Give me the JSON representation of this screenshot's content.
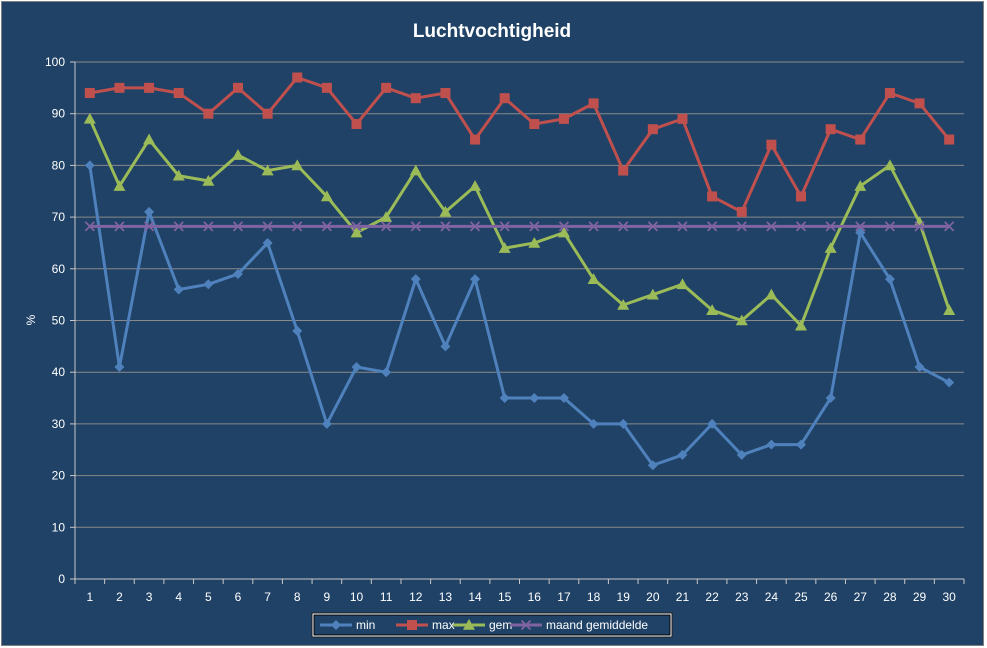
{
  "chart_data": {
    "type": "line",
    "title": "Luchtvochtigheid",
    "ylabel": "%",
    "xlabel": "",
    "ylim": [
      0,
      100
    ],
    "yticks": [
      0,
      10,
      20,
      30,
      40,
      50,
      60,
      70,
      80,
      90,
      100
    ],
    "categories": [
      "1",
      "2",
      "3",
      "4",
      "5",
      "6",
      "7",
      "8",
      "9",
      "10",
      "11",
      "12",
      "13",
      "14",
      "15",
      "16",
      "17",
      "18",
      "19",
      "20",
      "21",
      "22",
      "23",
      "24",
      "25",
      "26",
      "27",
      "28",
      "29",
      "30"
    ],
    "grid": "horizontal",
    "legend_position": "bottom",
    "series": [
      {
        "name": "min",
        "color": "#4f81bd",
        "marker": "diamond",
        "values": [
          80,
          41,
          71,
          56,
          57,
          59,
          65,
          48,
          30,
          41,
          40,
          58,
          45,
          58,
          35,
          35,
          35,
          30,
          30,
          22,
          24,
          30,
          24,
          26,
          26,
          35,
          67,
          58,
          41,
          38
        ]
      },
      {
        "name": "max",
        "color": "#c0504d",
        "marker": "square",
        "values": [
          94,
          95,
          95,
          94,
          90,
          95,
          90,
          97,
          95,
          88,
          95,
          93,
          94,
          85,
          93,
          88,
          89,
          92,
          79,
          87,
          89,
          74,
          71,
          84,
          74,
          87,
          85,
          94,
          92,
          85
        ]
      },
      {
        "name": "gem",
        "color": "#9bbb59",
        "marker": "triangle",
        "values": [
          89,
          76,
          85,
          78,
          77,
          82,
          79,
          80,
          74,
          67,
          70,
          79,
          71,
          76,
          64,
          65,
          67,
          58,
          53,
          55,
          57,
          52,
          50,
          55,
          49,
          64,
          76,
          80,
          69,
          52
        ]
      },
      {
        "name": "maand gemiddelde",
        "color": "#8064a2",
        "marker": "x",
        "values": [
          68.2,
          68.2,
          68.2,
          68.2,
          68.2,
          68.2,
          68.2,
          68.2,
          68.2,
          68.2,
          68.2,
          68.2,
          68.2,
          68.2,
          68.2,
          68.2,
          68.2,
          68.2,
          68.2,
          68.2,
          68.2,
          68.2,
          68.2,
          68.2,
          68.2,
          68.2,
          68.2,
          68.2,
          68.2,
          68.2
        ]
      }
    ]
  }
}
